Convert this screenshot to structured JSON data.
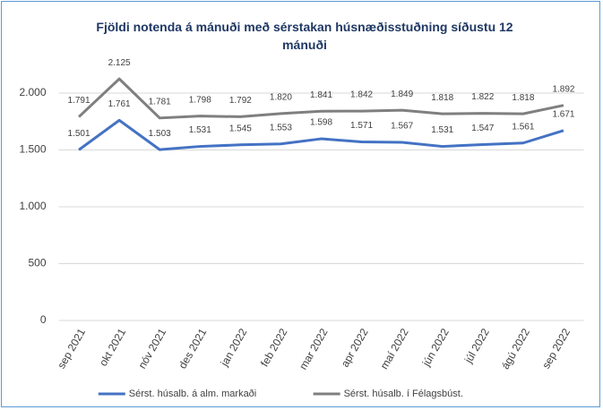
{
  "chart_data": {
    "type": "line",
    "title": "Fjöldi notenda á mánuði  með sérstakan húsnæðisstuðning síðustu 12 mánuði",
    "categories": [
      "sep 2021",
      "okt 2021",
      "nóv 2021",
      "des 2021",
      "jan 2022",
      "feb 2022",
      "mar 2022",
      "apr 2022",
      "maí 2022",
      "jún 2022",
      "júl 2022",
      "ágú 2022",
      "sep 2022"
    ],
    "series": [
      {
        "name": "Sérst. húsalb. á alm. markaði",
        "color": "#4472c4",
        "values": [
          1501,
          1761,
          1503,
          1531,
          1545,
          1553,
          1598,
          1571,
          1567,
          1531,
          1547,
          1561,
          1671
        ],
        "value_labels": [
          "1.501",
          "1.761",
          "1.503",
          "1.531",
          "1.545",
          "1.553",
          "1.598",
          "1.571",
          "1.567",
          "1.531",
          "1.547",
          "1.561",
          "1.671"
        ]
      },
      {
        "name": "Sérst. húsalb. í Félagsbúst.",
        "color": "#7f7f7f",
        "values": [
          1791,
          2125,
          1781,
          1798,
          1792,
          1820,
          1841,
          1842,
          1849,
          1818,
          1822,
          1818,
          1892
        ],
        "value_labels": [
          "1.791",
          "2.125",
          "1.781",
          "1.798",
          "1.792",
          "1.820",
          "1.841",
          "1.842",
          "1.849",
          "1.818",
          "1.822",
          "1.818",
          "1.892"
        ]
      }
    ],
    "ylim": [
      0,
      2500
    ],
    "yticks": [
      0,
      500,
      {
        "value": 1000,
        "label": "1.000"
      },
      {
        "value": 1500,
        "label": "1.500"
      },
      {
        "value": 2000,
        "label": "2.000"
      }
    ],
    "grid": true,
    "legend": "bottom"
  }
}
